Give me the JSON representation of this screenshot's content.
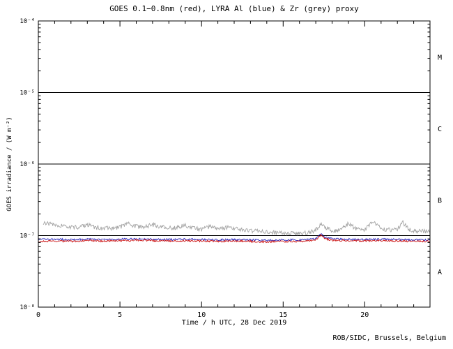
{
  "credit": "ROB/SIDC, Brussels, Belgium",
  "chart_data": {
    "type": "line",
    "title": "GOES 0.1−0.8nm (red), LYRA Al (blue) & Zr (grey) proxy",
    "xlabel": "Time / h UTC, 28 Dec 2019",
    "ylabel": "GOES irradiance / (W m⁻²)",
    "x_range": [
      0,
      24
    ],
    "y_range_log10": [
      -8,
      -4
    ],
    "x_ticks": [
      0,
      5,
      10,
      15,
      20
    ],
    "x_minor_step": 1,
    "y_tick_exponents": [
      -4,
      -5,
      -6,
      -7,
      -8
    ],
    "y_tick_labels": [
      "10⁻⁴",
      "10⁻⁵",
      "10⁻⁶",
      "10⁻⁷",
      "10⁻⁸"
    ],
    "grid": false,
    "legend": "encoded in title",
    "class_boundary_levels": [
      1e-05,
      1e-06,
      1e-07
    ],
    "class_labels": [
      {
        "label": "M",
        "level_log10": -4.5
      },
      {
        "label": "C",
        "level_log10": -5.5
      },
      {
        "label": "B",
        "level_log10": -6.5
      },
      {
        "label": "A",
        "level_log10": -7.5
      }
    ],
    "series": [
      {
        "id": "lyra-zr-proxy",
        "name": "LYRA Zr proxy",
        "color": "#a3a3a3",
        "noise": 0.07,
        "points": [
          [
            0.3,
            1.5e-07
          ],
          [
            1,
            1.42e-07
          ],
          [
            1.5,
            1.35e-07
          ],
          [
            2,
            1.3e-07
          ],
          [
            2.5,
            1.32e-07
          ],
          [
            3,
            1.42e-07
          ],
          [
            3.5,
            1.3e-07
          ],
          [
            4,
            1.27e-07
          ],
          [
            4.5,
            1.26e-07
          ],
          [
            5,
            1.3e-07
          ],
          [
            5.5,
            1.48e-07
          ],
          [
            6,
            1.35e-07
          ],
          [
            6.5,
            1.3e-07
          ],
          [
            7,
            1.43e-07
          ],
          [
            7.5,
            1.34e-07
          ],
          [
            8,
            1.27e-07
          ],
          [
            8.5,
            1.3e-07
          ],
          [
            9,
            1.4e-07
          ],
          [
            9.5,
            1.27e-07
          ],
          [
            10,
            1.22e-07
          ],
          [
            10.5,
            1.35e-07
          ],
          [
            11,
            1.22e-07
          ],
          [
            11.5,
            1.3e-07
          ],
          [
            12,
            1.26e-07
          ],
          [
            12.5,
            1.2e-07
          ],
          [
            13,
            1.17e-07
          ],
          [
            13.5,
            1.15e-07
          ],
          [
            14,
            1.12e-07
          ],
          [
            14.5,
            1.1e-07
          ],
          [
            15,
            1.1e-07
          ],
          [
            15.5,
            1.08e-07
          ],
          [
            16,
            1.06e-07
          ],
          [
            16.5,
            1.1e-07
          ],
          [
            17,
            1.2e-07
          ],
          [
            17.3,
            1.45e-07
          ],
          [
            17.6,
            1.28e-07
          ],
          [
            18,
            1.16e-07
          ],
          [
            18.5,
            1.2e-07
          ],
          [
            19,
            1.48e-07
          ],
          [
            19.5,
            1.24e-07
          ],
          [
            20,
            1.2e-07
          ],
          [
            20.5,
            1.58e-07
          ],
          [
            21,
            1.25e-07
          ],
          [
            21.5,
            1.2e-07
          ],
          [
            22,
            1.2e-07
          ],
          [
            22.3,
            1.55e-07
          ],
          [
            22.7,
            1.22e-07
          ],
          [
            23,
            1.18e-07
          ],
          [
            23.5,
            1.15e-07
          ],
          [
            24,
            1.15e-07
          ]
        ]
      },
      {
        "id": "lyra-al-proxy",
        "name": "LYRA Al proxy",
        "color": "#2323bb",
        "noise": 0.03,
        "points": [
          [
            0,
            8.8e-08
          ],
          [
            1,
            8.9e-08
          ],
          [
            2,
            8.8e-08
          ],
          [
            3,
            8.9e-08
          ],
          [
            4,
            8.8e-08
          ],
          [
            5,
            8.9e-08
          ],
          [
            6,
            9e-08
          ],
          [
            7,
            8.9e-08
          ],
          [
            8,
            8.8e-08
          ],
          [
            9,
            8.9e-08
          ],
          [
            10,
            8.8e-08
          ],
          [
            11,
            8.7e-08
          ],
          [
            12,
            8.8e-08
          ],
          [
            13,
            8.7e-08
          ],
          [
            14,
            8.6e-08
          ],
          [
            15,
            8.7e-08
          ],
          [
            16,
            8.7e-08
          ],
          [
            17,
            9e-08
          ],
          [
            17.3,
            1.06e-07
          ],
          [
            17.6,
            9.4e-08
          ],
          [
            18,
            9e-08
          ],
          [
            19,
            8.9e-08
          ],
          [
            20,
            8.8e-08
          ],
          [
            21,
            8.9e-08
          ],
          [
            22,
            8.8e-08
          ],
          [
            23,
            8.7e-08
          ],
          [
            24,
            8.7e-08
          ]
        ]
      },
      {
        "id": "goes-xray",
        "name": "GOES 0.1−0.8nm",
        "color": "#cc1111",
        "noise": 0.03,
        "points": [
          [
            0,
            8.3e-08
          ],
          [
            1,
            8.4e-08
          ],
          [
            2,
            8.3e-08
          ],
          [
            3,
            8.5e-08
          ],
          [
            4,
            8.4e-08
          ],
          [
            5,
            8.5e-08
          ],
          [
            6,
            8.6e-08
          ],
          [
            7,
            8.5e-08
          ],
          [
            8,
            8.4e-08
          ],
          [
            9,
            8.5e-08
          ],
          [
            10,
            8.4e-08
          ],
          [
            11,
            8.3e-08
          ],
          [
            12,
            8.4e-08
          ],
          [
            13,
            8.3e-08
          ],
          [
            14,
            8.2e-08
          ],
          [
            15,
            8.3e-08
          ],
          [
            16,
            8.3e-08
          ],
          [
            17,
            8.6e-08
          ],
          [
            17.3,
            1.02e-07
          ],
          [
            17.6,
            9e-08
          ],
          [
            18,
            8.6e-08
          ],
          [
            19,
            8.5e-08
          ],
          [
            20,
            8.4e-08
          ],
          [
            21,
            8.5e-08
          ],
          [
            22,
            8.4e-08
          ],
          [
            23,
            8.3e-08
          ],
          [
            24,
            8.3e-08
          ]
        ]
      }
    ]
  }
}
